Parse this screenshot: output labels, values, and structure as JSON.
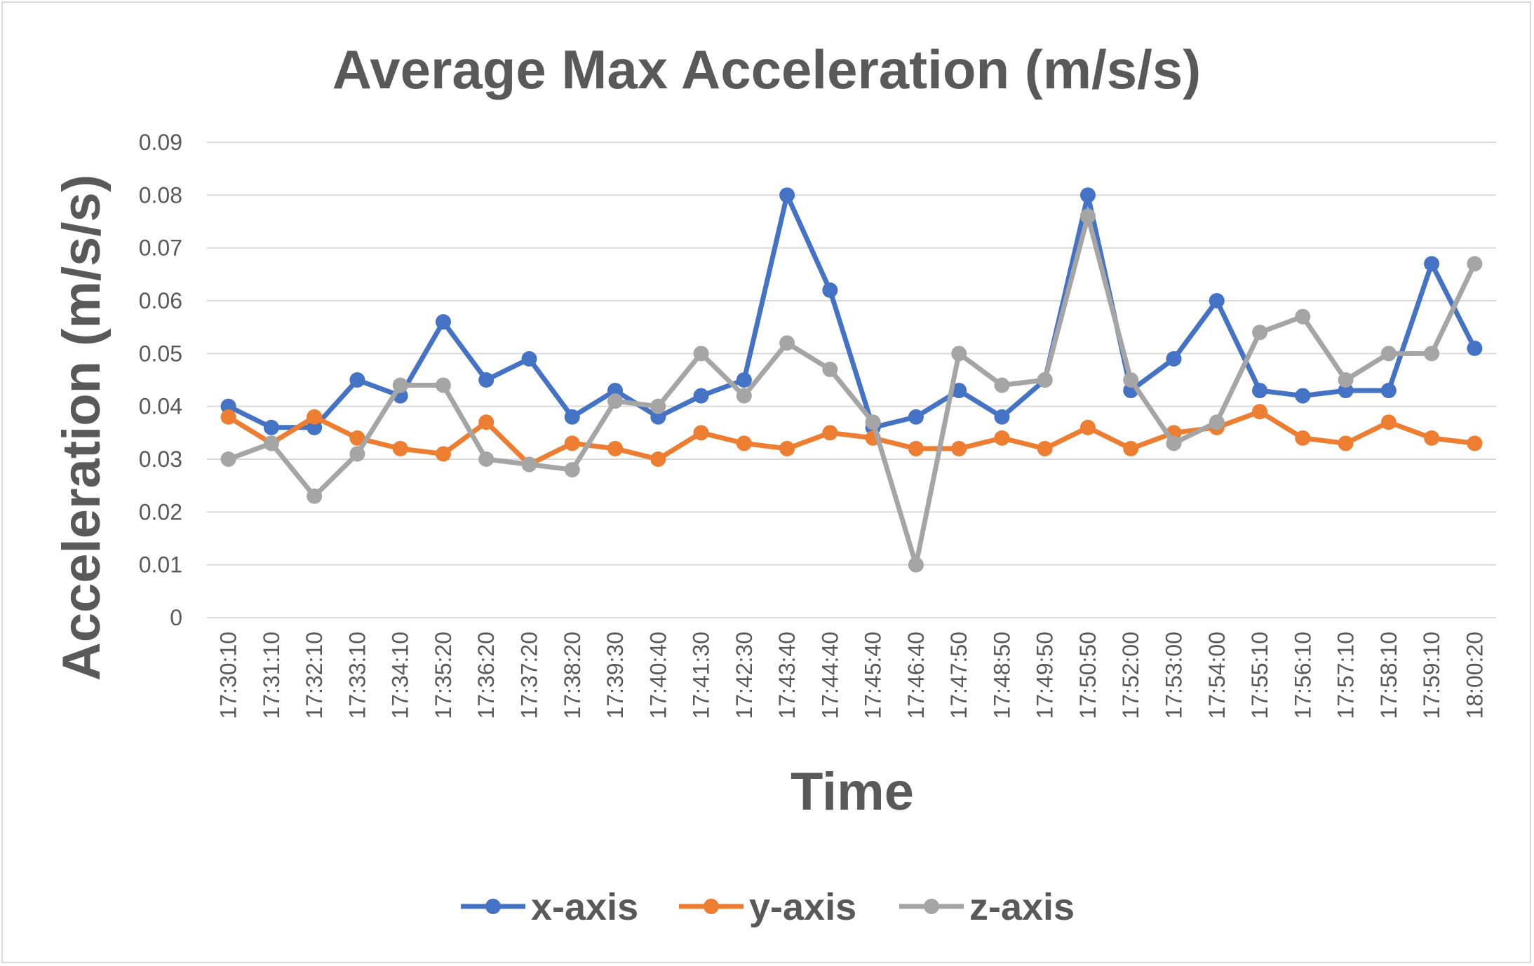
{
  "chart_data": {
    "type": "line",
    "title": "Average Max Acceleration (m/s/s)",
    "xlabel": "Time",
    "ylabel": "Acceleration (m/s/s)",
    "ylim": [
      0,
      0.09
    ],
    "yticks": [
      "0",
      "0.01",
      "0.02",
      "0.03",
      "0.04",
      "0.05",
      "0.06",
      "0.07",
      "0.08",
      "0.09"
    ],
    "grid": true,
    "legend_position": "bottom",
    "categories": [
      "17:30:10",
      "17:31:10",
      "17:32:10",
      "17:33:10",
      "17:34:10",
      "17:35:20",
      "17:36:20",
      "17:37:20",
      "17:38:20",
      "17:39:30",
      "17:40:40",
      "17:41:30",
      "17:42:30",
      "17:43:40",
      "17:44:40",
      "17:45:40",
      "17:46:40",
      "17:47:50",
      "17:48:50",
      "17:49:50",
      "17:50:50",
      "17:52:00",
      "17:53:00",
      "17:54:00",
      "17:55:10",
      "17:56:10",
      "17:57:10",
      "17:58:10",
      "17:59:10",
      "18:00:20"
    ],
    "series": [
      {
        "name": "x-axis",
        "color": "#4472c4",
        "values": [
          0.04,
          0.036,
          0.036,
          0.045,
          0.042,
          0.056,
          0.045,
          0.049,
          0.038,
          0.043,
          0.038,
          0.042,
          0.045,
          0.08,
          0.062,
          0.036,
          0.038,
          0.043,
          0.038,
          0.045,
          0.08,
          0.043,
          0.049,
          0.06,
          0.043,
          0.042,
          0.043,
          0.043,
          0.067,
          0.051
        ]
      },
      {
        "name": "y-axis",
        "color": "#ed7d31",
        "values": [
          0.038,
          0.033,
          0.038,
          0.034,
          0.032,
          0.031,
          0.037,
          0.029,
          0.033,
          0.032,
          0.03,
          0.035,
          0.033,
          0.032,
          0.035,
          0.034,
          0.032,
          0.032,
          0.034,
          0.032,
          0.036,
          0.032,
          0.035,
          0.036,
          0.039,
          0.034,
          0.033,
          0.037,
          0.034,
          0.033
        ]
      },
      {
        "name": "z-axis",
        "color": "#a5a5a5",
        "values": [
          0.03,
          0.033,
          0.023,
          0.031,
          0.044,
          0.044,
          0.03,
          0.029,
          0.028,
          0.041,
          0.04,
          0.05,
          0.042,
          0.052,
          0.047,
          0.037,
          0.01,
          0.05,
          0.044,
          0.045,
          0.076,
          0.045,
          0.033,
          0.037,
          0.054,
          0.057,
          0.045,
          0.05,
          0.05,
          0.067
        ]
      }
    ]
  }
}
